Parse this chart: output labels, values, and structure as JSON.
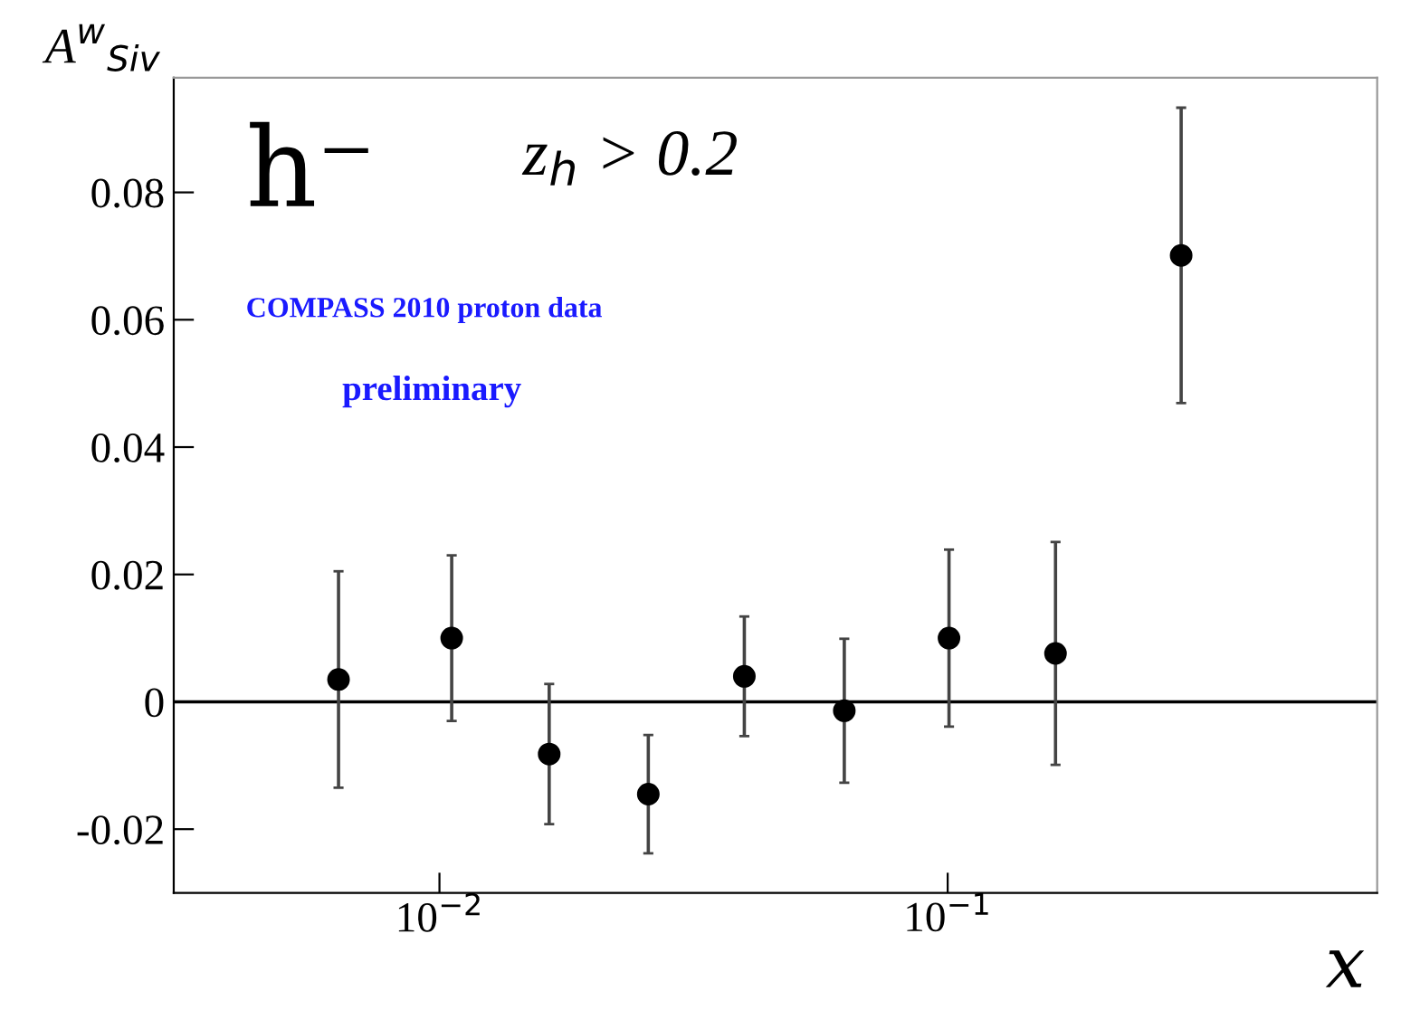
{
  "chart_data": {
    "type": "scatter",
    "xlabel": "x",
    "ylabel": "A$^{w}$$_{Siv}$",
    "x": [
      0.00633,
      0.01057,
      0.01644,
      0.02576,
      0.0398,
      0.0626,
      0.1006,
      0.163,
      0.288
    ],
    "series": [
      {
        "color": "#000000",
        "values": [
          0.0035,
          0.01,
          -0.0082,
          -0.0145,
          0.004,
          -0.0014,
          0.01,
          0.0076,
          0.0701
        ],
        "errors": [
          0.017,
          0.013,
          0.011,
          0.0093,
          0.0094,
          0.0113,
          0.0139,
          0.0175,
          0.0232
        ]
      }
    ],
    "log": "x",
    "xlim": [
      0.003,
      0.7
    ],
    "xticks": [
      {
        "value": 0.01,
        "label": "10$^{−2}$"
      },
      {
        "value": 0.1,
        "label": "10$^{−1}$"
      }
    ],
    "ylim": [
      -0.03,
      0.098
    ],
    "yticks": [
      -0.02,
      0,
      0.02,
      0.04,
      0.06,
      0.08
    ],
    "ref_lines": [
      {
        "axis": "y",
        "value": 0,
        "color": "#000000"
      }
    ],
    "marker": "circle",
    "grid": false,
    "legend": false,
    "annotations": [
      "h⁻",
      "z$_{h}$ > 0.2",
      "COMPASS 2010 proton data",
      "preliminary"
    ]
  }
}
